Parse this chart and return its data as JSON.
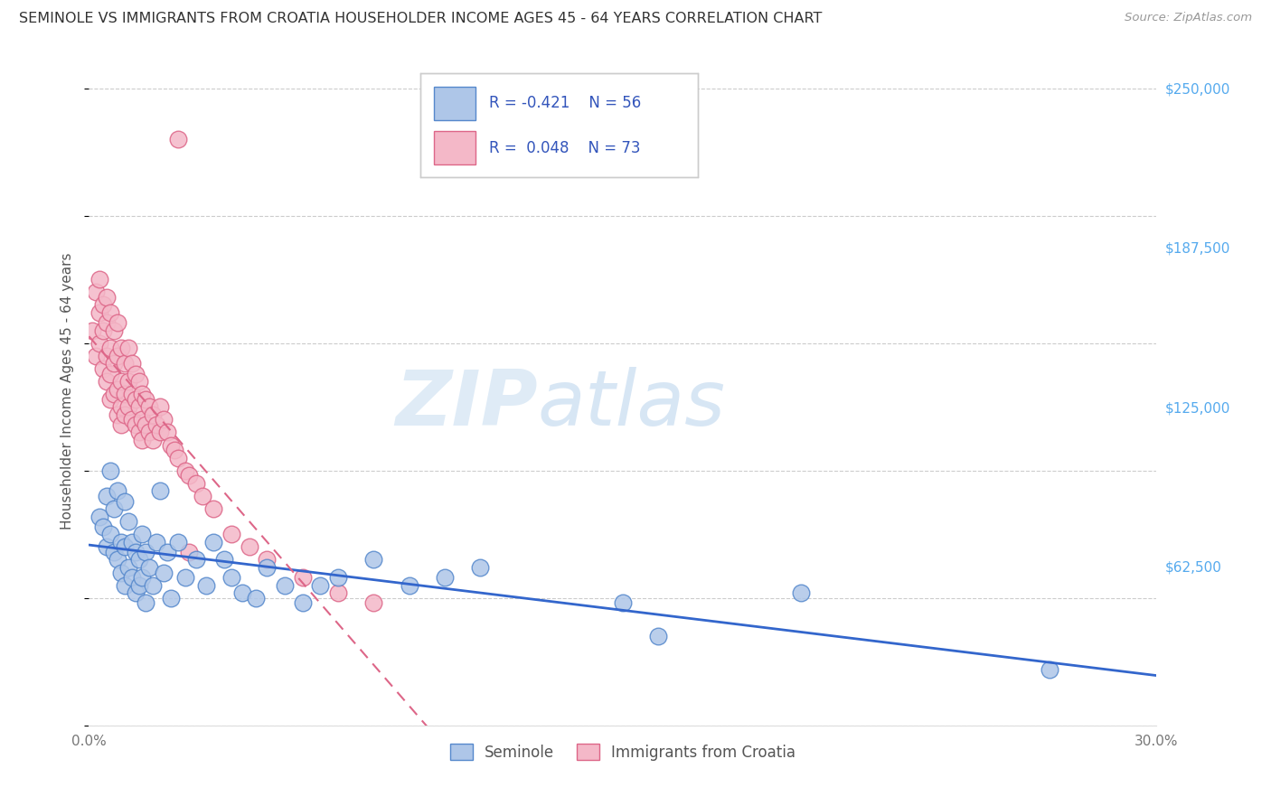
{
  "title": "SEMINOLE VS IMMIGRANTS FROM CROATIA HOUSEHOLDER INCOME AGES 45 - 64 YEARS CORRELATION CHART",
  "source": "Source: ZipAtlas.com",
  "ylabel": "Householder Income Ages 45 - 64 years",
  "xmin": 0.0,
  "xmax": 0.3,
  "ymin": 0,
  "ymax": 262500,
  "yticks": [
    0,
    62500,
    125000,
    187500,
    250000
  ],
  "ytick_labels": [
    "",
    "$62,500",
    "$125,000",
    "$187,500",
    "$250,000"
  ],
  "xticks": [
    0.0,
    0.05,
    0.1,
    0.15,
    0.2,
    0.25,
    0.3
  ],
  "xtick_labels": [
    "0.0%",
    "",
    "",
    "",
    "",
    "",
    "30.0%"
  ],
  "background_color": "#ffffff",
  "grid_color": "#cccccc",
  "watermark_zip": "ZIP",
  "watermark_atlas": "atlas",
  "seminole_color": "#aec6e8",
  "seminole_edge_color": "#5588cc",
  "croatia_color": "#f4b8c8",
  "croatia_edge_color": "#dd6688",
  "seminole_R": -0.421,
  "seminole_N": 56,
  "croatia_R": 0.048,
  "croatia_N": 73,
  "legend_label_seminole": "Seminole",
  "legend_label_croatia": "Immigrants from Croatia",
  "legend_R_color": "#3355bb",
  "trendline_seminole_color": "#3366cc",
  "trendline_croatia_color": "#dd6688",
  "seminole_x": [
    0.003,
    0.004,
    0.005,
    0.005,
    0.006,
    0.006,
    0.007,
    0.007,
    0.008,
    0.008,
    0.009,
    0.009,
    0.01,
    0.01,
    0.01,
    0.011,
    0.011,
    0.012,
    0.012,
    0.013,
    0.013,
    0.014,
    0.014,
    0.015,
    0.015,
    0.016,
    0.016,
    0.017,
    0.018,
    0.019,
    0.02,
    0.021,
    0.022,
    0.023,
    0.025,
    0.027,
    0.03,
    0.033,
    0.035,
    0.038,
    0.04,
    0.043,
    0.047,
    0.05,
    0.055,
    0.06,
    0.065,
    0.07,
    0.08,
    0.09,
    0.1,
    0.11,
    0.15,
    0.16,
    0.2,
    0.27
  ],
  "seminole_y": [
    82000,
    78000,
    90000,
    70000,
    100000,
    75000,
    85000,
    68000,
    92000,
    65000,
    72000,
    60000,
    88000,
    70000,
    55000,
    80000,
    62000,
    72000,
    58000,
    68000,
    52000,
    65000,
    55000,
    75000,
    58000,
    68000,
    48000,
    62000,
    55000,
    72000,
    92000,
    60000,
    68000,
    50000,
    72000,
    58000,
    65000,
    55000,
    72000,
    65000,
    58000,
    52000,
    50000,
    62000,
    55000,
    48000,
    55000,
    58000,
    65000,
    55000,
    58000,
    62000,
    48000,
    35000,
    52000,
    22000
  ],
  "croatia_x": [
    0.001,
    0.002,
    0.002,
    0.003,
    0.003,
    0.003,
    0.004,
    0.004,
    0.004,
    0.005,
    0.005,
    0.005,
    0.005,
    0.006,
    0.006,
    0.006,
    0.006,
    0.007,
    0.007,
    0.007,
    0.008,
    0.008,
    0.008,
    0.008,
    0.009,
    0.009,
    0.009,
    0.009,
    0.01,
    0.01,
    0.01,
    0.011,
    0.011,
    0.011,
    0.012,
    0.012,
    0.012,
    0.013,
    0.013,
    0.013,
    0.014,
    0.014,
    0.014,
    0.015,
    0.015,
    0.015,
    0.016,
    0.016,
    0.017,
    0.017,
    0.018,
    0.018,
    0.019,
    0.02,
    0.02,
    0.021,
    0.022,
    0.023,
    0.024,
    0.025,
    0.027,
    0.028,
    0.03,
    0.032,
    0.035,
    0.04,
    0.045,
    0.05,
    0.06,
    0.07,
    0.08,
    0.028,
    0.025
  ],
  "croatia_y": [
    155000,
    170000,
    145000,
    162000,
    175000,
    150000,
    165000,
    155000,
    140000,
    168000,
    158000,
    145000,
    135000,
    162000,
    148000,
    138000,
    128000,
    155000,
    142000,
    130000,
    158000,
    145000,
    132000,
    122000,
    148000,
    135000,
    125000,
    118000,
    142000,
    130000,
    122000,
    148000,
    135000,
    125000,
    142000,
    130000,
    120000,
    138000,
    128000,
    118000,
    135000,
    125000,
    115000,
    130000,
    120000,
    112000,
    128000,
    118000,
    125000,
    115000,
    122000,
    112000,
    118000,
    125000,
    115000,
    120000,
    115000,
    110000,
    108000,
    105000,
    100000,
    98000,
    95000,
    90000,
    85000,
    75000,
    70000,
    65000,
    58000,
    52000,
    48000,
    68000,
    230000
  ]
}
